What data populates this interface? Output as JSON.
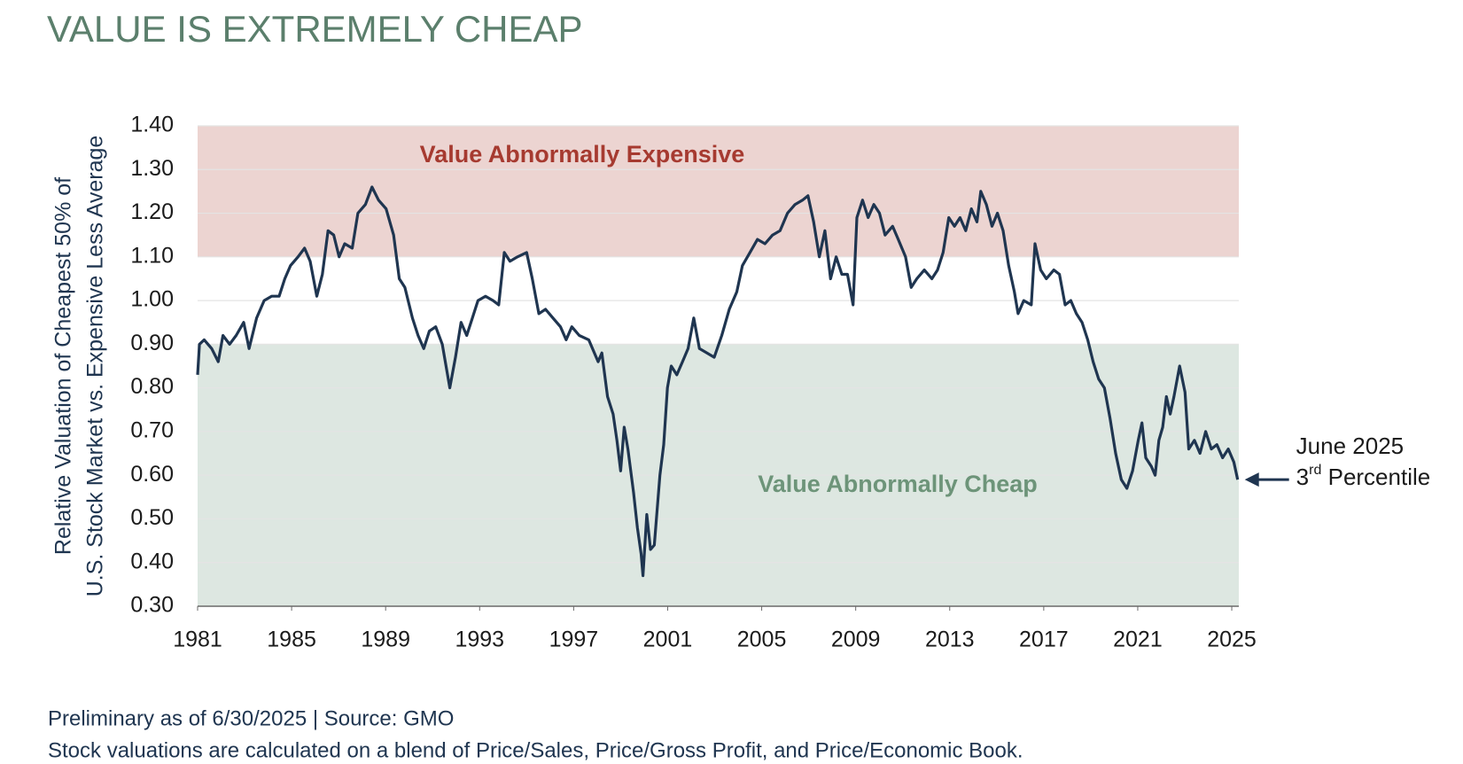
{
  "chart_data": {
    "type": "line",
    "title": "VALUE IS EXTREMELY CHEAP",
    "y_label": [
      "Relative Valuation of Cheapest 50% of",
      "U.S. Stock Market vs. Expensive Less Average"
    ],
    "notes": [
      "Preliminary as of 6/30/2025 | Source: GMO",
      "Stock valuations are calculated on a blend of Price/Sales, Price/Gross Profit, and Price/Economic Book."
    ],
    "annotation": {
      "line1": "June 2025",
      "line2": [
        "3",
        "rd",
        " Percentile"
      ]
    },
    "color": "#1f3550",
    "bands": [
      {
        "label": "Value Abnormally Expensive",
        "from": 1.1,
        "to": 1.4,
        "color": "#ecd4d1",
        "text_color": "#a63a30"
      },
      {
        "label": "Value Abnormally Cheap",
        "from": 0.3,
        "to": 0.9,
        "color": "#dde7e1",
        "text_color": "#6d9479"
      }
    ],
    "xlim": [
      1981,
      2025.3
    ],
    "xticks": [
      1981,
      1985,
      1989,
      1993,
      1997,
      2001,
      2005,
      2009,
      2013,
      2017,
      2021,
      2025
    ],
    "ylim": [
      0.3,
      1.4
    ],
    "yticks": [
      {
        "value": 0.3,
        "label": "0.30"
      },
      {
        "value": 0.4,
        "label": "0.40"
      },
      {
        "value": 0.5,
        "label": "0.50"
      },
      {
        "value": 0.6,
        "label": "0.60"
      },
      {
        "value": 0.7,
        "label": "0.70"
      },
      {
        "value": 0.8,
        "label": "0.80"
      },
      {
        "value": 0.9,
        "label": "0.90"
      },
      {
        "value": 1.0,
        "label": "1.00"
      },
      {
        "value": 1.1,
        "label": "1.10"
      },
      {
        "value": 1.2,
        "label": "1.20"
      },
      {
        "value": 1.3,
        "label": "1.30"
      },
      {
        "value": 1.4,
        "label": "1.40"
      }
    ],
    "grid": true,
    "x": [
      1981.0,
      1981.08,
      1981.28,
      1981.6,
      1981.88,
      1982.08,
      1982.36,
      1982.64,
      1982.96,
      1983.19,
      1983.51,
      1983.83,
      1984.15,
      1984.47,
      1984.71,
      1984.95,
      1985.27,
      1985.55,
      1985.79,
      1986.07,
      1986.31,
      1986.55,
      1986.79,
      1987.02,
      1987.26,
      1987.58,
      1987.82,
      1988.14,
      1988.42,
      1988.7,
      1989.02,
      1989.34,
      1989.58,
      1989.82,
      1990.14,
      1990.38,
      1990.62,
      1990.86,
      1991.13,
      1991.41,
      1991.73,
      1991.97,
      1992.21,
      1992.45,
      1992.69,
      1992.93,
      1993.25,
      1993.57,
      1993.81,
      1994.05,
      1994.29,
      1994.61,
      1995.0,
      1995.24,
      1995.52,
      1995.8,
      1996.12,
      1996.44,
      1996.68,
      1996.92,
      1997.24,
      1997.64,
      1998.04,
      1998.2,
      1998.44,
      1998.68,
      1998.84,
      1999.0,
      1999.15,
      1999.31,
      1999.55,
      1999.71,
      1999.87,
      1999.95,
      2000.11,
      2000.27,
      2000.43,
      2000.67,
      2000.83,
      2000.99,
      2001.15,
      2001.39,
      2001.63,
      2001.87,
      2002.11,
      2002.35,
      2002.67,
      2002.98,
      2003.3,
      2003.62,
      2003.94,
      2004.18,
      2004.5,
      2004.82,
      2005.14,
      2005.46,
      2005.78,
      2006.1,
      2006.42,
      2006.74,
      2006.97,
      2007.21,
      2007.45,
      2007.69,
      2007.93,
      2008.17,
      2008.41,
      2008.65,
      2008.89,
      2009.05,
      2009.29,
      2009.53,
      2009.77,
      2010.01,
      2010.25,
      2010.57,
      2010.81,
      2011.12,
      2011.36,
      2011.6,
      2011.92,
      2012.24,
      2012.48,
      2012.72,
      2012.96,
      2013.2,
      2013.44,
      2013.68,
      2013.92,
      2014.16,
      2014.32,
      2014.56,
      2014.8,
      2015.03,
      2015.27,
      2015.51,
      2015.75,
      2015.91,
      2016.15,
      2016.47,
      2016.63,
      2016.87,
      2017.11,
      2017.43,
      2017.67,
      2017.91,
      2018.15,
      2018.39,
      2018.63,
      2018.87,
      2019.1,
      2019.34,
      2019.58,
      2019.82,
      2020.06,
      2020.3,
      2020.54,
      2020.78,
      2021.02,
      2021.18,
      2021.34,
      2021.58,
      2021.74,
      2021.9,
      2022.06,
      2022.22,
      2022.38,
      2022.54,
      2022.78,
      2023.01,
      2023.17,
      2023.41,
      2023.65,
      2023.89,
      2024.13,
      2024.37,
      2024.61,
      2024.85,
      2025.09,
      2025.25
    ],
    "values": [
      0.83,
      0.9,
      0.91,
      0.89,
      0.86,
      0.92,
      0.9,
      0.92,
      0.95,
      0.89,
      0.96,
      1.0,
      1.01,
      1.01,
      1.05,
      1.08,
      1.1,
      1.12,
      1.09,
      1.01,
      1.06,
      1.16,
      1.15,
      1.1,
      1.13,
      1.12,
      1.2,
      1.22,
      1.26,
      1.23,
      1.21,
      1.15,
      1.05,
      1.03,
      0.96,
      0.92,
      0.89,
      0.93,
      0.94,
      0.9,
      0.8,
      0.87,
      0.95,
      0.92,
      0.96,
      1.0,
      1.01,
      1.0,
      0.99,
      1.11,
      1.09,
      1.1,
      1.11,
      1.05,
      0.97,
      0.98,
      0.96,
      0.94,
      0.91,
      0.94,
      0.92,
      0.91,
      0.86,
      0.88,
      0.78,
      0.74,
      0.68,
      0.61,
      0.71,
      0.66,
      0.56,
      0.48,
      0.42,
      0.37,
      0.51,
      0.43,
      0.44,
      0.6,
      0.67,
      0.8,
      0.85,
      0.83,
      0.86,
      0.89,
      0.96,
      0.89,
      0.88,
      0.87,
      0.92,
      0.98,
      1.02,
      1.08,
      1.11,
      1.14,
      1.13,
      1.15,
      1.16,
      1.2,
      1.22,
      1.23,
      1.24,
      1.18,
      1.1,
      1.16,
      1.05,
      1.1,
      1.06,
      1.06,
      0.99,
      1.19,
      1.23,
      1.19,
      1.22,
      1.2,
      1.15,
      1.17,
      1.14,
      1.1,
      1.03,
      1.05,
      1.07,
      1.05,
      1.07,
      1.11,
      1.19,
      1.17,
      1.19,
      1.16,
      1.21,
      1.18,
      1.25,
      1.22,
      1.17,
      1.2,
      1.16,
      1.08,
      1.02,
      0.97,
      1.0,
      0.99,
      1.13,
      1.07,
      1.05,
      1.07,
      1.06,
      0.99,
      1.0,
      0.97,
      0.95,
      0.91,
      0.86,
      0.82,
      0.8,
      0.73,
      0.65,
      0.59,
      0.57,
      0.61,
      0.68,
      0.72,
      0.64,
      0.62,
      0.6,
      0.68,
      0.71,
      0.78,
      0.74,
      0.78,
      0.85,
      0.79,
      0.66,
      0.68,
      0.65,
      0.7,
      0.66,
      0.67,
      0.64,
      0.66,
      0.63,
      0.59
    ]
  }
}
